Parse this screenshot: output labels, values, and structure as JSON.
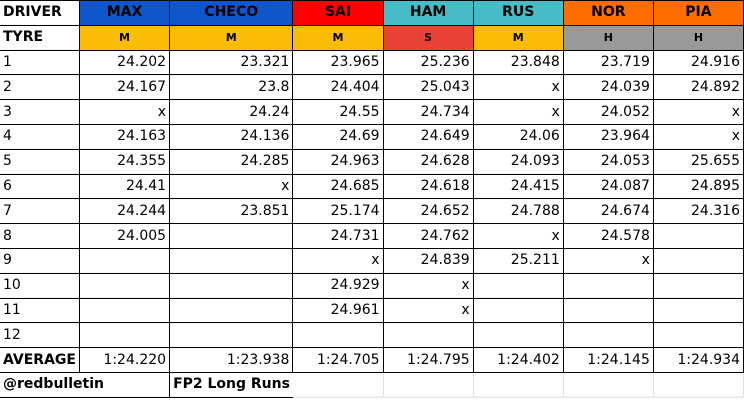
{
  "header_label": "DRIVER",
  "tyre_label": "TYRE",
  "average_label": "AVERAGE",
  "drivers": [
    {
      "name": "MAX",
      "tyre": "M",
      "color": "#1155cc",
      "tyre_color": "#fbbc04",
      "laps": [
        "24.202",
        "24.167",
        "x",
        "24.163",
        "24.355",
        "24.41",
        "24.244",
        "24.005",
        "",
        "",
        "",
        ""
      ],
      "average": "1:24.220"
    },
    {
      "name": "CHECO",
      "tyre": "M",
      "color": "#1155cc",
      "tyre_color": "#fbbc04",
      "laps": [
        "23.321",
        "23.8",
        "24.24",
        "24.136",
        "24.285",
        "x",
        "23.851",
        "",
        "",
        "",
        "",
        ""
      ],
      "average": "1:23.938"
    },
    {
      "name": "SAI",
      "tyre": "M",
      "color": "#ff0000",
      "tyre_color": "#fbbc04",
      "laps": [
        "23.965",
        "24.404",
        "24.55",
        "24.69",
        "24.963",
        "24.685",
        "25.174",
        "24.731",
        "x",
        "24.929",
        "24.961",
        ""
      ],
      "average": "1:24.705"
    },
    {
      "name": "HAM",
      "tyre": "S",
      "color": "#46bdc6",
      "tyre_color": "#ea4335",
      "laps": [
        "25.236",
        "25.043",
        "24.734",
        "24.649",
        "24.628",
        "24.618",
        "24.652",
        "24.762",
        "24.839",
        "x",
        "x",
        ""
      ],
      "average": "1:24.795"
    },
    {
      "name": "RUS",
      "tyre": "M",
      "color": "#46bdc6",
      "tyre_color": "#fbbc04",
      "laps": [
        "23.848",
        "x",
        "x",
        "24.06",
        "24.093",
        "24.415",
        "24.788",
        "x",
        "25.211",
        "",
        "",
        ""
      ],
      "average": "1:24.402"
    },
    {
      "name": "NOR",
      "tyre": "H",
      "color": "#ff6d01",
      "tyre_color": "#999999",
      "laps": [
        "23.719",
        "24.039",
        "24.052",
        "23.964",
        "24.053",
        "24.087",
        "24.674",
        "24.578",
        "x",
        "",
        "",
        ""
      ],
      "average": "1:24.145"
    },
    {
      "name": "PIA",
      "tyre": "H",
      "color": "#ff6d01",
      "tyre_color": "#999999",
      "laps": [
        "24.916",
        "24.892",
        "x",
        "x",
        "25.655",
        "24.895",
        "24.316",
        "",
        "",
        "",
        "",
        ""
      ],
      "average": "1:24.934"
    }
  ],
  "lap_numbers": [
    "1",
    "2",
    "3",
    "4",
    "5",
    "6",
    "7",
    "8",
    "9",
    "10",
    "11",
    "12"
  ],
  "footer": {
    "handle": "@redbulletin",
    "title": "FP2 Long Runs"
  }
}
